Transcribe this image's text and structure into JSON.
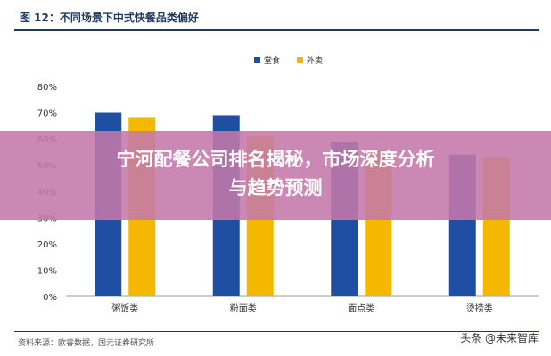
{
  "figure_title": "图 12：不同场景下中式快餐品类偏好",
  "banner": {
    "line1": "宁河配餐公司排名揭秘，市场深度分析",
    "line2": "与趋势预测"
  },
  "source": "资料来源：欧睿数据，国元证券研究所",
  "watermark": "头条 @未来智库",
  "colors": {
    "series1": "#1f4fa3",
    "series2": "#f5b800",
    "rule": "#1f3a5f"
  },
  "chart_data": {
    "type": "bar",
    "categories": [
      "粥饭类",
      "粉面类",
      "面点类",
      "烫捞类"
    ],
    "series": [
      {
        "name": "堂食",
        "values": [
          70,
          69,
          59,
          54
        ]
      },
      {
        "name": "外卖",
        "values": [
          68,
          61,
          56,
          53
        ]
      }
    ],
    "ylim": [
      0,
      80
    ],
    "yticks": [
      0,
      10,
      20,
      30,
      40,
      50,
      60,
      70,
      80
    ],
    "ytick_labels": [
      "0%",
      "10%",
      "20%",
      "30%",
      "40%",
      "50%",
      "60%",
      "70%",
      "80%"
    ],
    "legend": "top-center",
    "grid": false
  }
}
